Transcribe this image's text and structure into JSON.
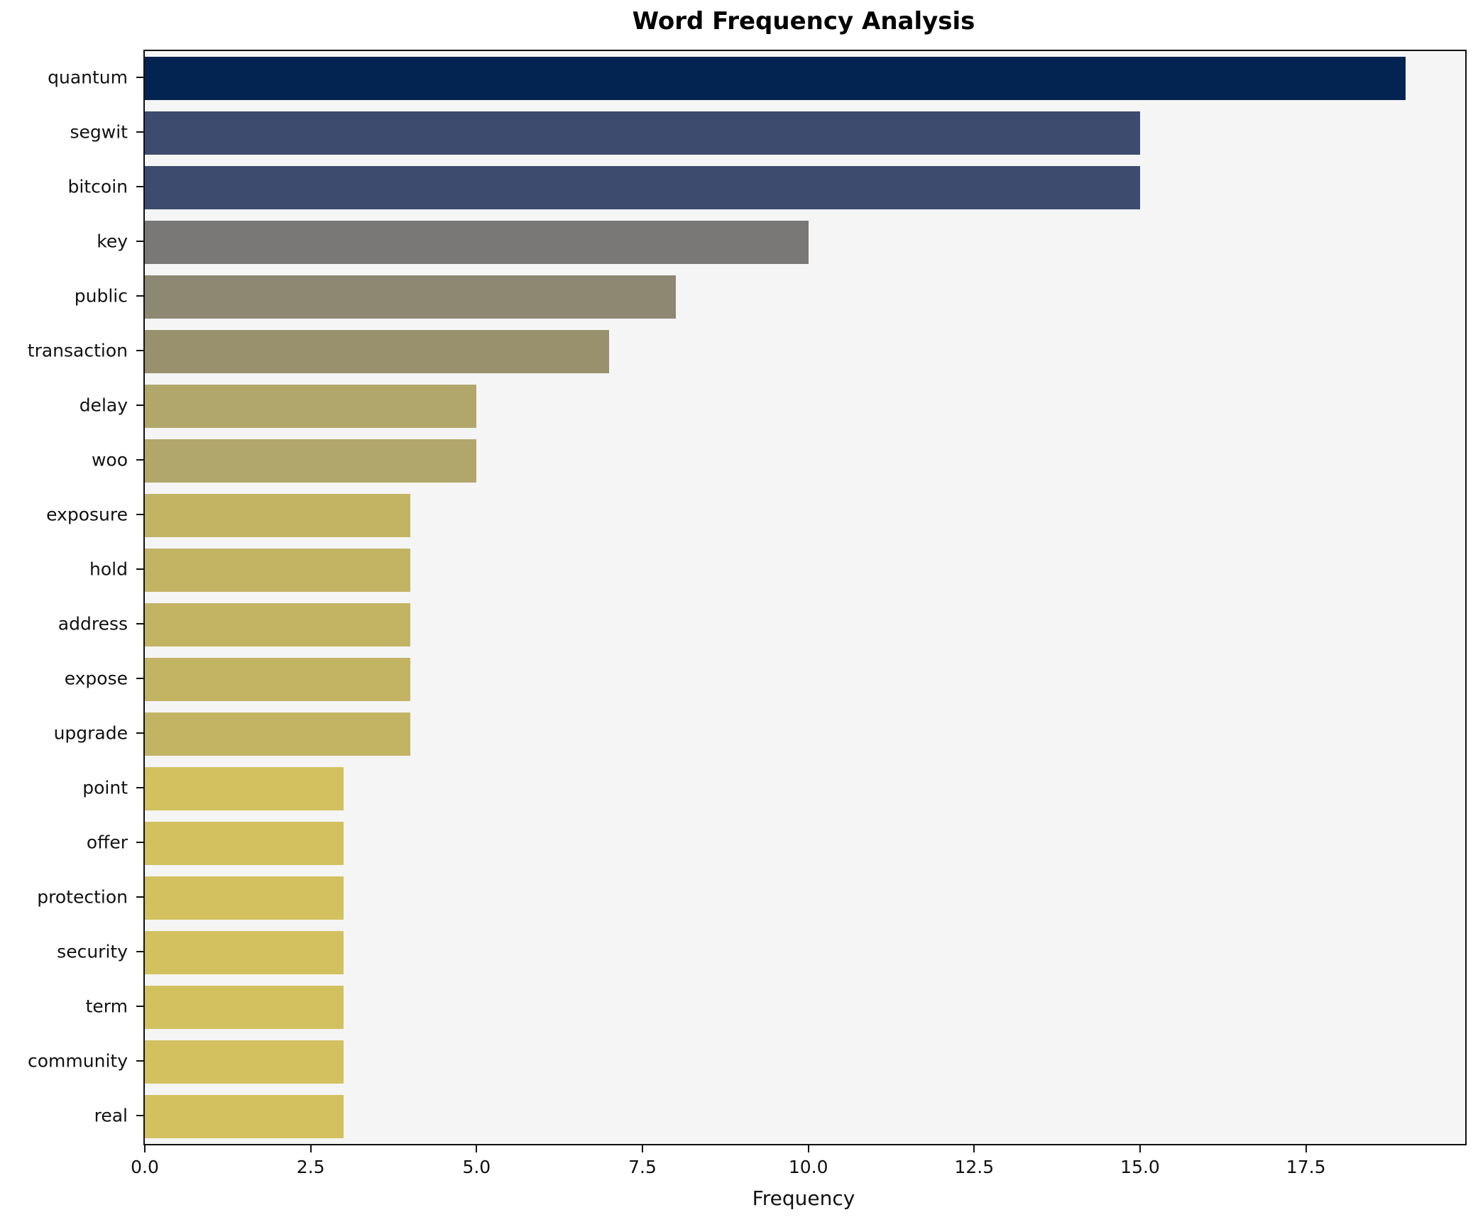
{
  "chart_data": {
    "type": "bar",
    "orientation": "horizontal",
    "title": "Word Frequency Analysis",
    "xlabel": "Frequency",
    "ylabel": "",
    "categories": [
      "quantum",
      "segwit",
      "bitcoin",
      "key",
      "public",
      "transaction",
      "delay",
      "woo",
      "exposure",
      "hold",
      "address",
      "expose",
      "upgrade",
      "point",
      "offer",
      "protection",
      "security",
      "term",
      "community",
      "real"
    ],
    "values": [
      19,
      15,
      15,
      10,
      8,
      7,
      5,
      5,
      4,
      4,
      4,
      4,
      4,
      3,
      3,
      3,
      3,
      3,
      3,
      3
    ],
    "bar_colors": [
      "#032450",
      "#3d4b6e",
      "#3d4b6e",
      "#7a7876",
      "#8e8872",
      "#99916d",
      "#b2a76a",
      "#b2a76a",
      "#c3b464",
      "#c3b464",
      "#c3b464",
      "#c3b464",
      "#c3b464",
      "#d3c15f",
      "#d3c15f",
      "#d3c15f",
      "#d3c15f",
      "#d3c15f",
      "#d3c15f",
      "#d3c15f"
    ],
    "xlim": [
      0,
      19.9
    ],
    "xticks": [
      {
        "value": 0,
        "label": "0.0"
      },
      {
        "value": 2.5,
        "label": "2.5"
      },
      {
        "value": 5,
        "label": "5.0"
      },
      {
        "value": 7.5,
        "label": "7.5"
      },
      {
        "value": 10,
        "label": "10.0"
      },
      {
        "value": 12.5,
        "label": "12.5"
      },
      {
        "value": 15,
        "label": "15.0"
      },
      {
        "value": 17.5,
        "label": "17.5"
      }
    ],
    "grid": false,
    "legend_position": "none",
    "plot_background": "#f5f5f6",
    "figure_background": "#ffffff",
    "spine_color": "#111111"
  }
}
